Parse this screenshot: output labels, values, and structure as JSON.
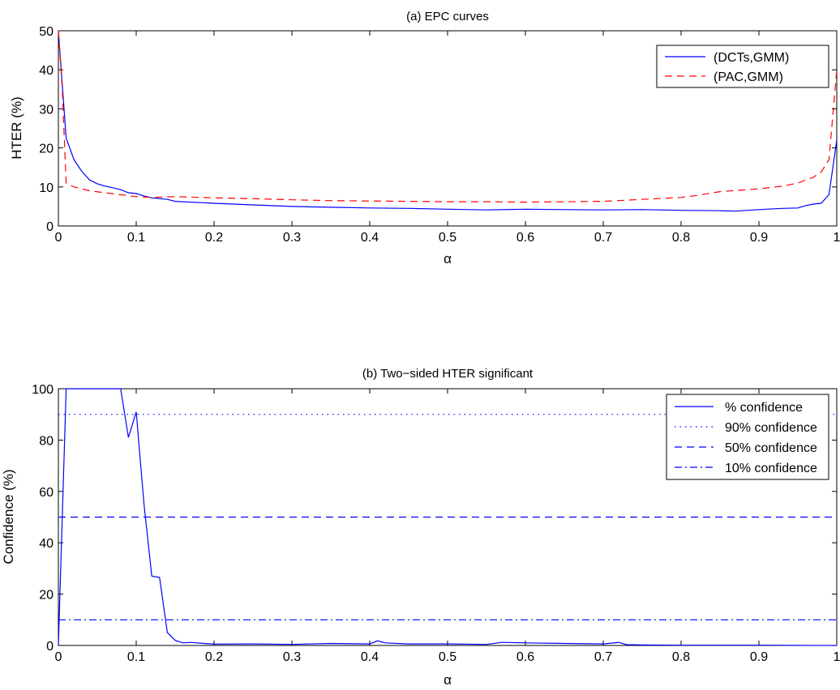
{
  "chart_data": [
    {
      "type": "line",
      "title": "(a) EPC curves",
      "xlabel": "α",
      "ylabel": "HTER (%)",
      "xlim": [
        0,
        1
      ],
      "ylim": [
        0,
        50
      ],
      "xticks": [
        0,
        0.1,
        0.2,
        0.3,
        0.4,
        0.5,
        0.6,
        0.7,
        0.8,
        0.9,
        1
      ],
      "xtick_labels": [
        "0",
        "0.1",
        "0.2",
        "0.3",
        "0.4",
        "0.5",
        "0.6",
        "0.7",
        "0.8",
        "0.9",
        "1"
      ],
      "yticks": [
        0,
        10,
        20,
        30,
        40,
        50
      ],
      "ytick_labels": [
        "0",
        "10",
        "20",
        "30",
        "40",
        "50"
      ],
      "grid": false,
      "legend_position": "top-right",
      "series": [
        {
          "name": "(DCTs,GMM)",
          "color": "#0000ff",
          "style": "solid",
          "x": [
            0,
            0.01,
            0.02,
            0.03,
            0.04,
            0.05,
            0.06,
            0.07,
            0.08,
            0.09,
            0.1,
            0.11,
            0.12,
            0.13,
            0.14,
            0.15,
            0.2,
            0.25,
            0.3,
            0.35,
            0.4,
            0.45,
            0.5,
            0.55,
            0.6,
            0.65,
            0.7,
            0.75,
            0.8,
            0.85,
            0.87,
            0.9,
            0.93,
            0.95,
            0.96,
            0.97,
            0.98,
            0.99,
            1.0
          ],
          "y": [
            50,
            22.5,
            17,
            14,
            11.8,
            10.8,
            10.2,
            9.8,
            9.3,
            8.5,
            8.3,
            7.7,
            7.2,
            7.0,
            6.8,
            6.3,
            5.8,
            5.4,
            5.0,
            4.8,
            4.6,
            4.5,
            4.3,
            4.1,
            4.3,
            4.2,
            4.1,
            4.2,
            4.0,
            3.9,
            3.8,
            4.2,
            4.5,
            4.6,
            5.2,
            5.6,
            5.8,
            8.0,
            22
          ]
        },
        {
          "name": "(PAC,GMM)",
          "color": "#ff0000",
          "style": "dashed",
          "x": [
            0,
            0.005,
            0.01,
            0.015,
            0.02,
            0.04,
            0.06,
            0.08,
            0.1,
            0.12,
            0.15,
            0.2,
            0.25,
            0.3,
            0.35,
            0.4,
            0.45,
            0.5,
            0.55,
            0.6,
            0.65,
            0.7,
            0.75,
            0.8,
            0.82,
            0.85,
            0.9,
            0.93,
            0.95,
            0.97,
            0.98,
            0.99,
            1.0
          ],
          "y": [
            50,
            35,
            11,
            10.5,
            10,
            9.0,
            8.5,
            8.0,
            7.5,
            7.3,
            7.5,
            7.2,
            7.0,
            6.7,
            6.5,
            6.4,
            6.3,
            6.2,
            6.2,
            6.1,
            6.2,
            6.3,
            6.8,
            7.3,
            7.8,
            8.8,
            9.5,
            10.2,
            11.0,
            12.5,
            13.8,
            17,
            40
          ]
        }
      ]
    },
    {
      "type": "line",
      "title": "(b) Two−sided HTER significant",
      "xlabel": "α",
      "ylabel": "Confidence (%)",
      "xlim": [
        0,
        1
      ],
      "ylim": [
        0,
        100
      ],
      "xticks": [
        0,
        0.1,
        0.2,
        0.3,
        0.4,
        0.5,
        0.6,
        0.7,
        0.8,
        0.9,
        1
      ],
      "xtick_labels": [
        "0",
        "0.1",
        "0.2",
        "0.3",
        "0.4",
        "0.5",
        "0.6",
        "0.7",
        "0.8",
        "0.9",
        "1"
      ],
      "yticks": [
        0,
        20,
        40,
        60,
        80,
        100
      ],
      "ytick_labels": [
        "0",
        "20",
        "40",
        "60",
        "80",
        "100"
      ],
      "grid": false,
      "legend_position": "top-right",
      "series": [
        {
          "name": "% confidence",
          "color": "#0000ff",
          "style": "solid",
          "x": [
            0,
            0.01,
            0.02,
            0.03,
            0.04,
            0.05,
            0.06,
            0.07,
            0.08,
            0.09,
            0.1,
            0.11,
            0.12,
            0.13,
            0.14,
            0.15,
            0.16,
            0.17,
            0.2,
            0.25,
            0.3,
            0.35,
            0.4,
            0.41,
            0.42,
            0.45,
            0.5,
            0.55,
            0.57,
            0.6,
            0.65,
            0.7,
            0.72,
            0.73,
            0.75,
            0.8,
            0.9,
            1.0
          ],
          "y": [
            0,
            100,
            100,
            100,
            100,
            100,
            100,
            100,
            100,
            81,
            91,
            55,
            27,
            26.5,
            5,
            2,
            1,
            1.2,
            0.5,
            0.6,
            0.4,
            0.8,
            0.6,
            1.8,
            1.0,
            0.6,
            0.6,
            0.4,
            1.2,
            1.0,
            0.8,
            0.6,
            1.2,
            0.3,
            0.2,
            0.1,
            0.1,
            0
          ]
        },
        {
          "name": "90% confidence",
          "color": "#0000ff",
          "style": "dotted",
          "x": [
            0,
            1
          ],
          "y": [
            90,
            90
          ]
        },
        {
          "name": "50% confidence",
          "color": "#0000ff",
          "style": "dashed",
          "x": [
            0,
            1
          ],
          "y": [
            50,
            50
          ]
        },
        {
          "name": "10% confidence",
          "color": "#0000ff",
          "style": "dashdot",
          "x": [
            0,
            1
          ],
          "y": [
            10,
            10
          ]
        }
      ]
    }
  ]
}
